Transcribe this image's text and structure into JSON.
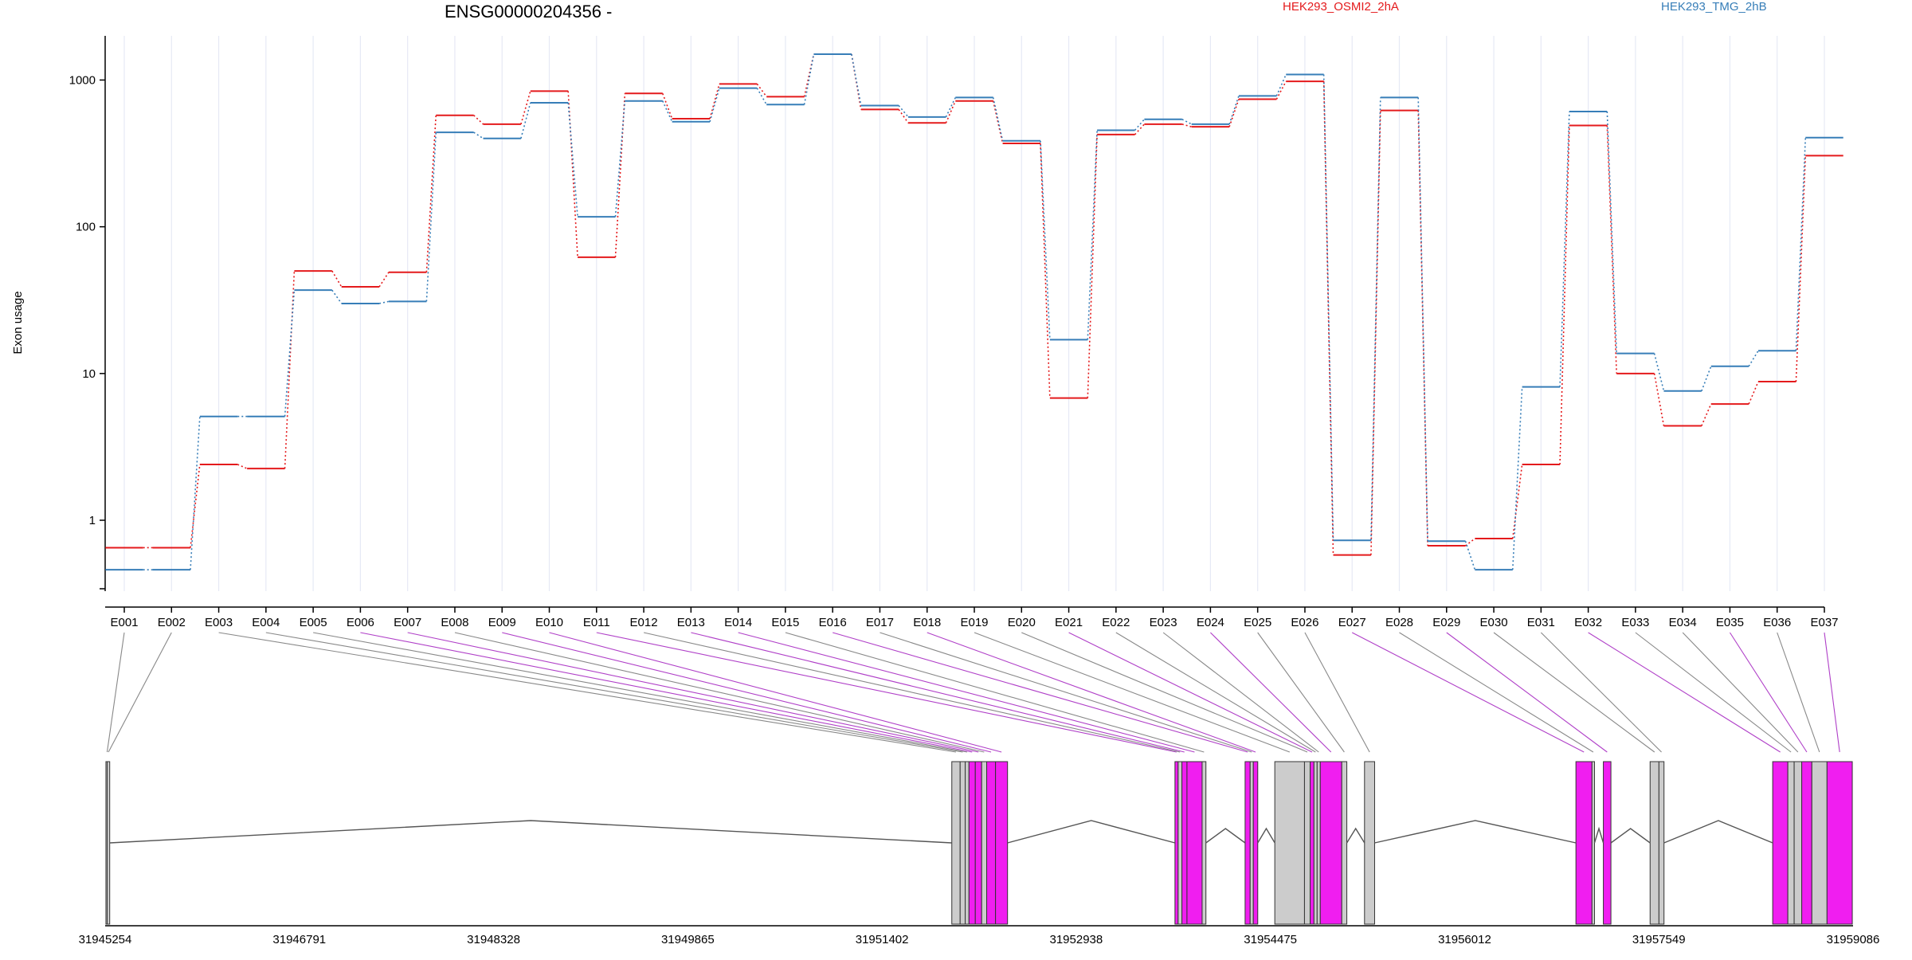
{
  "chart_data": {
    "type": "line",
    "title": "ENSG00000204356 -",
    "ylabel": "Exon usage",
    "xlabel": "",
    "y_scale": "log",
    "ylim": [
      0.35,
      2000
    ],
    "y_ticks": [
      1,
      10,
      100,
      1000
    ],
    "y_tick_labels": [
      "1",
      "10",
      "100",
      "1000"
    ],
    "grid": "vertical",
    "legend_placement": "top",
    "categories": [
      "E001",
      "E002",
      "E003",
      "E004",
      "E005",
      "E006",
      "E007",
      "E008",
      "E009",
      "E010",
      "E011",
      "E012",
      "E013",
      "E014",
      "E015",
      "E016",
      "E017",
      "E018",
      "E019",
      "E020",
      "E021",
      "E022",
      "E023",
      "E024",
      "E025",
      "E026",
      "E027",
      "E028",
      "E029",
      "E030",
      "E031",
      "E032",
      "E033",
      "E034",
      "E035",
      "E036",
      "E037"
    ],
    "series": [
      {
        "name": "HEK293_OSMI2_2hA",
        "color": "#e41a1c",
        "values": [
          0.65,
          0.65,
          2.4,
          2.25,
          50,
          39,
          49,
          575,
          500,
          840,
          62,
          810,
          545,
          940,
          770,
          1500,
          630,
          510,
          720,
          370,
          6.8,
          425,
          500,
          480,
          740,
          980,
          0.58,
          620,
          0.67,
          0.75,
          2.4,
          490,
          10,
          4.4,
          6.2,
          8.8,
          305
        ]
      },
      {
        "name": "HEK293_TMG_2hB",
        "color": "#377eb8",
        "values": [
          0.46,
          0.46,
          5.1,
          5.1,
          37,
          30,
          31,
          440,
          400,
          700,
          117,
          720,
          520,
          880,
          680,
          1500,
          670,
          560,
          760,
          385,
          17,
          455,
          540,
          500,
          780,
          1090,
          0.73,
          760,
          0.72,
          0.46,
          8.1,
          610,
          13.7,
          7.6,
          11.2,
          14.3,
          405
        ]
      }
    ],
    "gene_model": {
      "coordinate_ticks": [
        "31945254",
        "31946791",
        "31948328",
        "31949865",
        "31951402",
        "31952938",
        "31954475",
        "31956012",
        "31957549",
        "31959086"
      ],
      "coord_range": [
        31945254,
        31959086
      ],
      "intron_color": "#555555",
      "tested_exon_color": "#f01ef0",
      "untested_exon_color": "#cccccc",
      "exons": [
        {
          "id": "E001",
          "start": 31945260,
          "end": 31945270,
          "tested": false
        },
        {
          "id": "E002",
          "start": 31945270,
          "end": 31945290,
          "tested": false
        },
        {
          "id": "E003",
          "start": 31951954,
          "end": 31952020,
          "tested": false
        },
        {
          "id": "E004",
          "start": 31952020,
          "end": 31952060,
          "tested": false
        },
        {
          "id": "E005",
          "start": 31952060,
          "end": 31952090,
          "tested": false
        },
        {
          "id": "E006",
          "start": 31952090,
          "end": 31952140,
          "tested": true
        },
        {
          "id": "E007",
          "start": 31952140,
          "end": 31952190,
          "tested": true
        },
        {
          "id": "E008",
          "start": 31952190,
          "end": 31952230,
          "tested": false
        },
        {
          "id": "E009",
          "start": 31952230,
          "end": 31952300,
          "tested": true
        },
        {
          "id": "E010",
          "start": 31952300,
          "end": 31952395,
          "tested": true
        },
        {
          "id": "E011",
          "start": 31953720,
          "end": 31953745,
          "tested": true
        },
        {
          "id": "E012",
          "start": 31953745,
          "end": 31953775,
          "tested": false
        },
        {
          "id": "E013",
          "start": 31953775,
          "end": 31953815,
          "tested": true
        },
        {
          "id": "E014",
          "start": 31953815,
          "end": 31953935,
          "tested": true
        },
        {
          "id": "E015",
          "start": 31953935,
          "end": 31953965,
          "tested": false
        },
        {
          "id": "E016",
          "start": 31954275,
          "end": 31954315,
          "tested": true
        },
        {
          "id": "E017",
          "start": 31954315,
          "end": 31954340,
          "tested": false
        },
        {
          "id": "E018",
          "start": 31954340,
          "end": 31954375,
          "tested": true
        },
        {
          "id": "E019",
          "start": 31954510,
          "end": 31954745,
          "tested": false
        },
        {
          "id": "E020",
          "start": 31954745,
          "end": 31954790,
          "tested": false
        },
        {
          "id": "E021",
          "start": 31954790,
          "end": 31954820,
          "tested": true
        },
        {
          "id": "E022",
          "start": 31954820,
          "end": 31954845,
          "tested": false
        },
        {
          "id": "E023",
          "start": 31954845,
          "end": 31954870,
          "tested": false
        },
        {
          "id": "E024",
          "start": 31954870,
          "end": 31955040,
          "tested": true
        },
        {
          "id": "E025",
          "start": 31955040,
          "end": 31955080,
          "tested": false
        },
        {
          "id": "E026",
          "start": 31955220,
          "end": 31955300,
          "tested": false
        },
        {
          "id": "E027",
          "start": 31956893,
          "end": 31957020,
          "tested": true
        },
        {
          "id": "E028",
          "start": 31957020,
          "end": 31957040,
          "tested": false
        },
        {
          "id": "E029",
          "start": 31957110,
          "end": 31957170,
          "tested": true
        },
        {
          "id": "E030",
          "start": 31957480,
          "end": 31957550,
          "tested": false
        },
        {
          "id": "E031",
          "start": 31957550,
          "end": 31957590,
          "tested": false
        },
        {
          "id": "E032",
          "start": 31958450,
          "end": 31958570,
          "tested": true
        },
        {
          "id": "E033",
          "start": 31958570,
          "end": 31958620,
          "tested": false
        },
        {
          "id": "E034",
          "start": 31958620,
          "end": 31958680,
          "tested": false
        },
        {
          "id": "E035",
          "start": 31958680,
          "end": 31958760,
          "tested": true
        },
        {
          "id": "E036",
          "start": 31958760,
          "end": 31958880,
          "tested": false
        },
        {
          "id": "E037",
          "start": 31958880,
          "end": 31959080,
          "tested": true
        }
      ]
    }
  }
}
